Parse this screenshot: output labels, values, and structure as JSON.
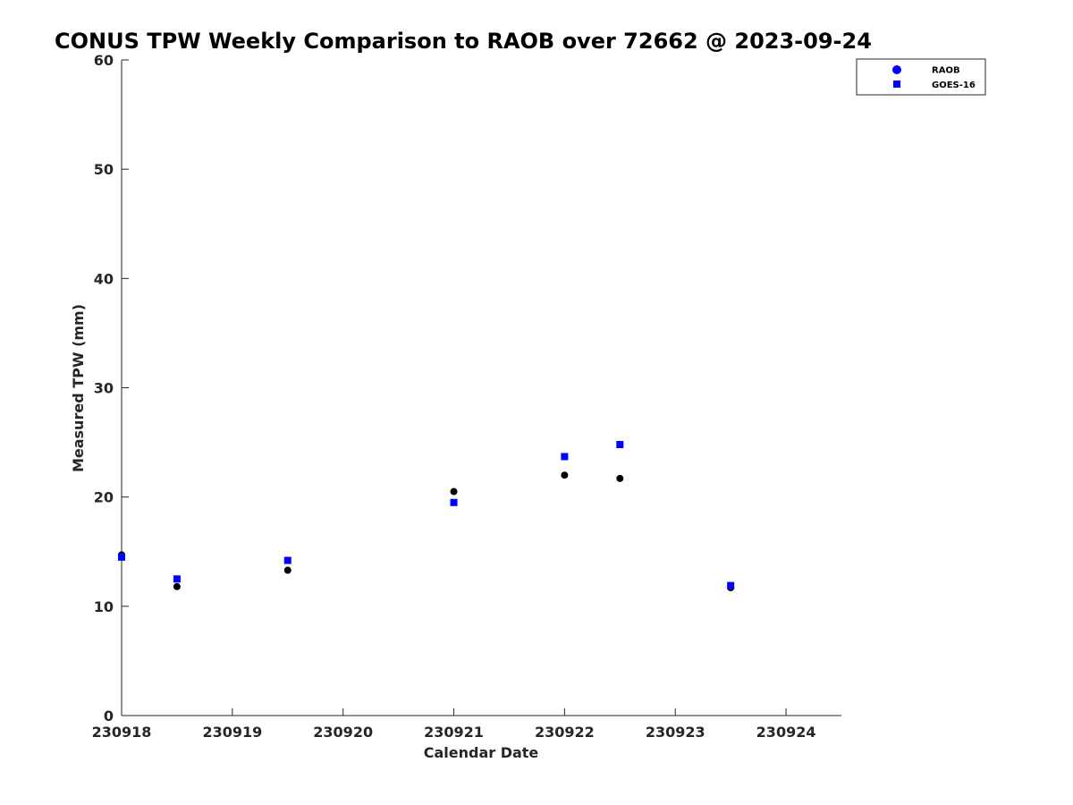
{
  "chart_data": {
    "type": "scatter",
    "title": "CONUS TPW Weekly Comparison to RAOB over 72662 @ 2023-09-24",
    "xlabel": "Calendar Date",
    "ylabel": "Measured TPW (mm)",
    "xlim": [
      230918,
      230924.5
    ],
    "ylim": [
      0,
      60
    ],
    "x_ticks": [
      230918,
      230919,
      230920,
      230921,
      230922,
      230923,
      230924
    ],
    "x_tick_labels": [
      "230918",
      "230919",
      "230920",
      "230921",
      "230922",
      "230923",
      "230924"
    ],
    "y_ticks": [
      0,
      10,
      20,
      30,
      40,
      50,
      60
    ],
    "y_tick_labels": [
      "0",
      "10",
      "20",
      "30",
      "40",
      "50",
      "60"
    ],
    "grid": false,
    "legend_position": "top-right",
    "legend": [
      "RAOB",
      "GOES-16"
    ],
    "series": [
      {
        "name": "RAOB",
        "marker": "circle",
        "color": "#0000ff",
        "points_color": "#000000",
        "x": [
          230918,
          230918.5,
          230919.5,
          230921,
          230922,
          230922.5,
          230923.5
        ],
        "y": [
          14.7,
          11.8,
          13.3,
          20.5,
          22.0,
          21.7,
          11.7
        ]
      },
      {
        "name": "GOES-16",
        "marker": "square",
        "color": "#0000ff",
        "points_color": "#0000ff",
        "x": [
          230918,
          230918.5,
          230919.5,
          230921,
          230922,
          230922.5,
          230923.5
        ],
        "y": [
          14.5,
          12.5,
          14.2,
          19.5,
          23.7,
          24.8,
          11.9
        ]
      }
    ]
  }
}
